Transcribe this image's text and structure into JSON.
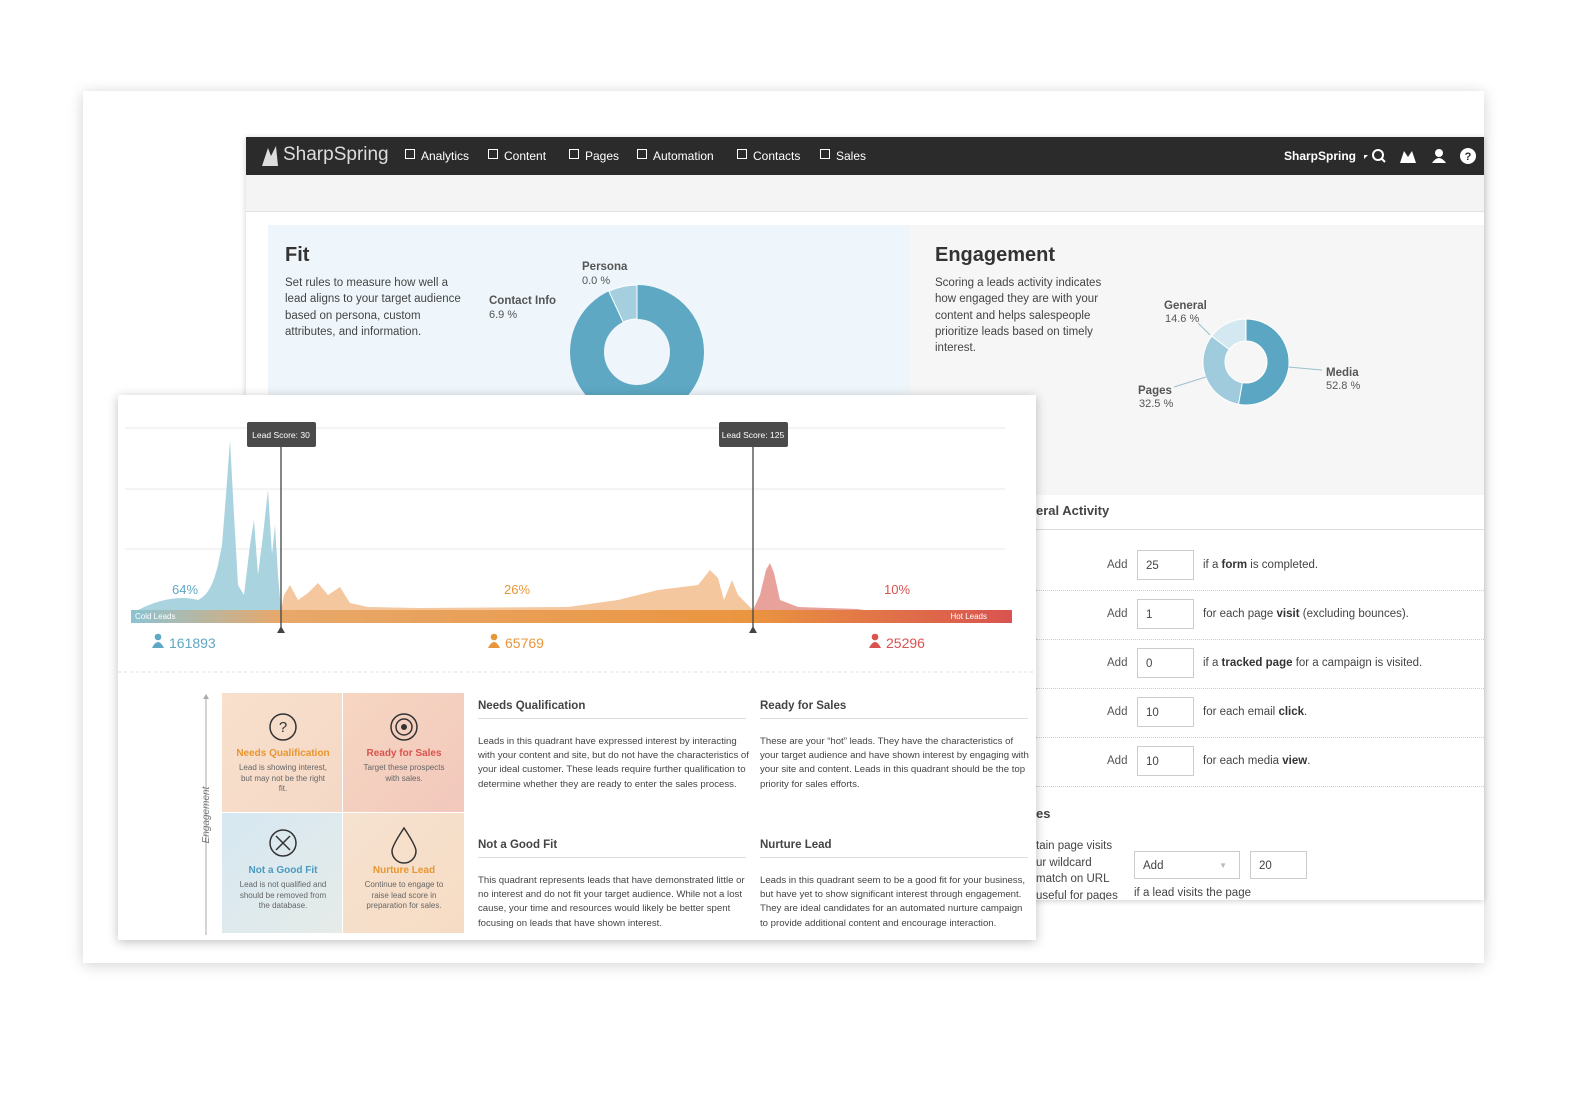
{
  "nav": {
    "brand": "SharpSpring",
    "items": [
      "Analytics",
      "Content",
      "Pages",
      "Automation",
      "Contacts",
      "Sales"
    ],
    "account": "SharpSpring"
  },
  "fit": {
    "title": "Fit",
    "description": "Set rules to measure how well a lead aligns to your target audience based on persona, custom attributes, and information.",
    "chart": {
      "slices": [
        {
          "label": "Persona",
          "value": 0.0,
          "value_label": "0.0 %"
        },
        {
          "label": "Contact Info",
          "value": 6.9,
          "value_label": "6.9 %"
        }
      ]
    }
  },
  "engagement": {
    "title": "Engagement",
    "description": "Scoring a leads activity indicates how engaged they are with your content and helps salespeople prioritize leads based on timely interest.",
    "chart": {
      "slices": [
        {
          "label": "Media",
          "value": 52.8,
          "value_label": "52.8 %"
        },
        {
          "label": "Pages",
          "value": 32.5,
          "value_label": "32.5 %"
        },
        {
          "label": "General",
          "value": 14.6,
          "value_label": "14.6 %"
        }
      ]
    }
  },
  "general_activity": {
    "title": "eral Activity",
    "rows": [
      {
        "action": "Add",
        "points": 25,
        "text": [
          {
            "text": "if a ",
            "bold": false
          },
          {
            "text": "form",
            "bold": true
          },
          {
            "text": " is completed.",
            "bold": false
          }
        ]
      },
      {
        "action": "Add",
        "points": 1,
        "text": [
          {
            "text": "for each page ",
            "bold": false
          },
          {
            "text": "visit",
            "bold": true
          },
          {
            "text": " (excluding bounces).",
            "bold": false
          }
        ]
      },
      {
        "action": "Add",
        "points": 0,
        "text": [
          {
            "text": "if a ",
            "bold": false
          },
          {
            "text": "tracked page",
            "bold": true
          },
          {
            "text": " for a campaign is visited.",
            "bold": false
          }
        ]
      },
      {
        "action": "Add",
        "points": 10,
        "text": [
          {
            "text": "for each email ",
            "bold": false
          },
          {
            "text": "click",
            "bold": true
          },
          {
            "text": ".",
            "bold": false
          }
        ]
      },
      {
        "action": "Add",
        "points": 10,
        "text": [
          {
            "text": "for each media ",
            "bold": false
          },
          {
            "text": "view",
            "bold": true
          },
          {
            "text": ".",
            "bold": false
          }
        ]
      }
    ]
  },
  "pages_section": {
    "title": "es",
    "lines": [
      "tain page visits",
      "ur wildcard",
      "match on URL",
      "useful for pages"
    ],
    "select": "Add",
    "points": 20,
    "note": "if a lead visits the page"
  },
  "distribution": {
    "markers": [
      "Lead Score: 30",
      "Lead Score: 125"
    ],
    "start_label": "Cold Leads",
    "end_label": "Hot Leads",
    "segments": [
      {
        "share": "64%",
        "count": 161893
      },
      {
        "share": "26%",
        "count": 65769
      },
      {
        "share": "10%",
        "count": 25296
      }
    ]
  },
  "quadrants": {
    "axis_label": "Engagement",
    "cells": [
      {
        "title": "Needs Qualification",
        "text": "Lead is showing interest, but may not be the right fit."
      },
      {
        "title": "Ready for Sales",
        "text": "Target these prospects with sales."
      },
      {
        "title": "Not a Good Fit",
        "text": "Lead is not qualified and should be removed from the database."
      },
      {
        "title": "Nurture Lead",
        "text": "Continue to engage to raise lead score in preparation for sales."
      }
    ],
    "details": [
      {
        "title": "Needs Qualification",
        "text": "Leads in this quadrant have expressed interest by interacting with your content and site, but do not have the characteristics of your ideal customer. These leads require further qualification to determine whether they are ready to enter the sales process."
      },
      {
        "title": "Ready for Sales",
        "text": "These are your “hot” leads. They have the characteristics of your target audience and have shown interest by engaging with your site and content. Leads in this quadrant should be the top priority for sales efforts."
      },
      {
        "title": "Not a Good Fit",
        "text": "This quadrant represents leads that have demonstrated little or no interest and do not fit your target audience. While not a lost cause, your time and resources would likely be better spent focusing on leads that have shown interest."
      },
      {
        "title": "Nurture Lead",
        "text": "Leads in this quadrant seem to be a good fit for your business, but have yet to show significant interest through engagement. They are ideal candidates for an automated nurture campaign to provide additional content and encourage interaction."
      }
    ]
  }
}
